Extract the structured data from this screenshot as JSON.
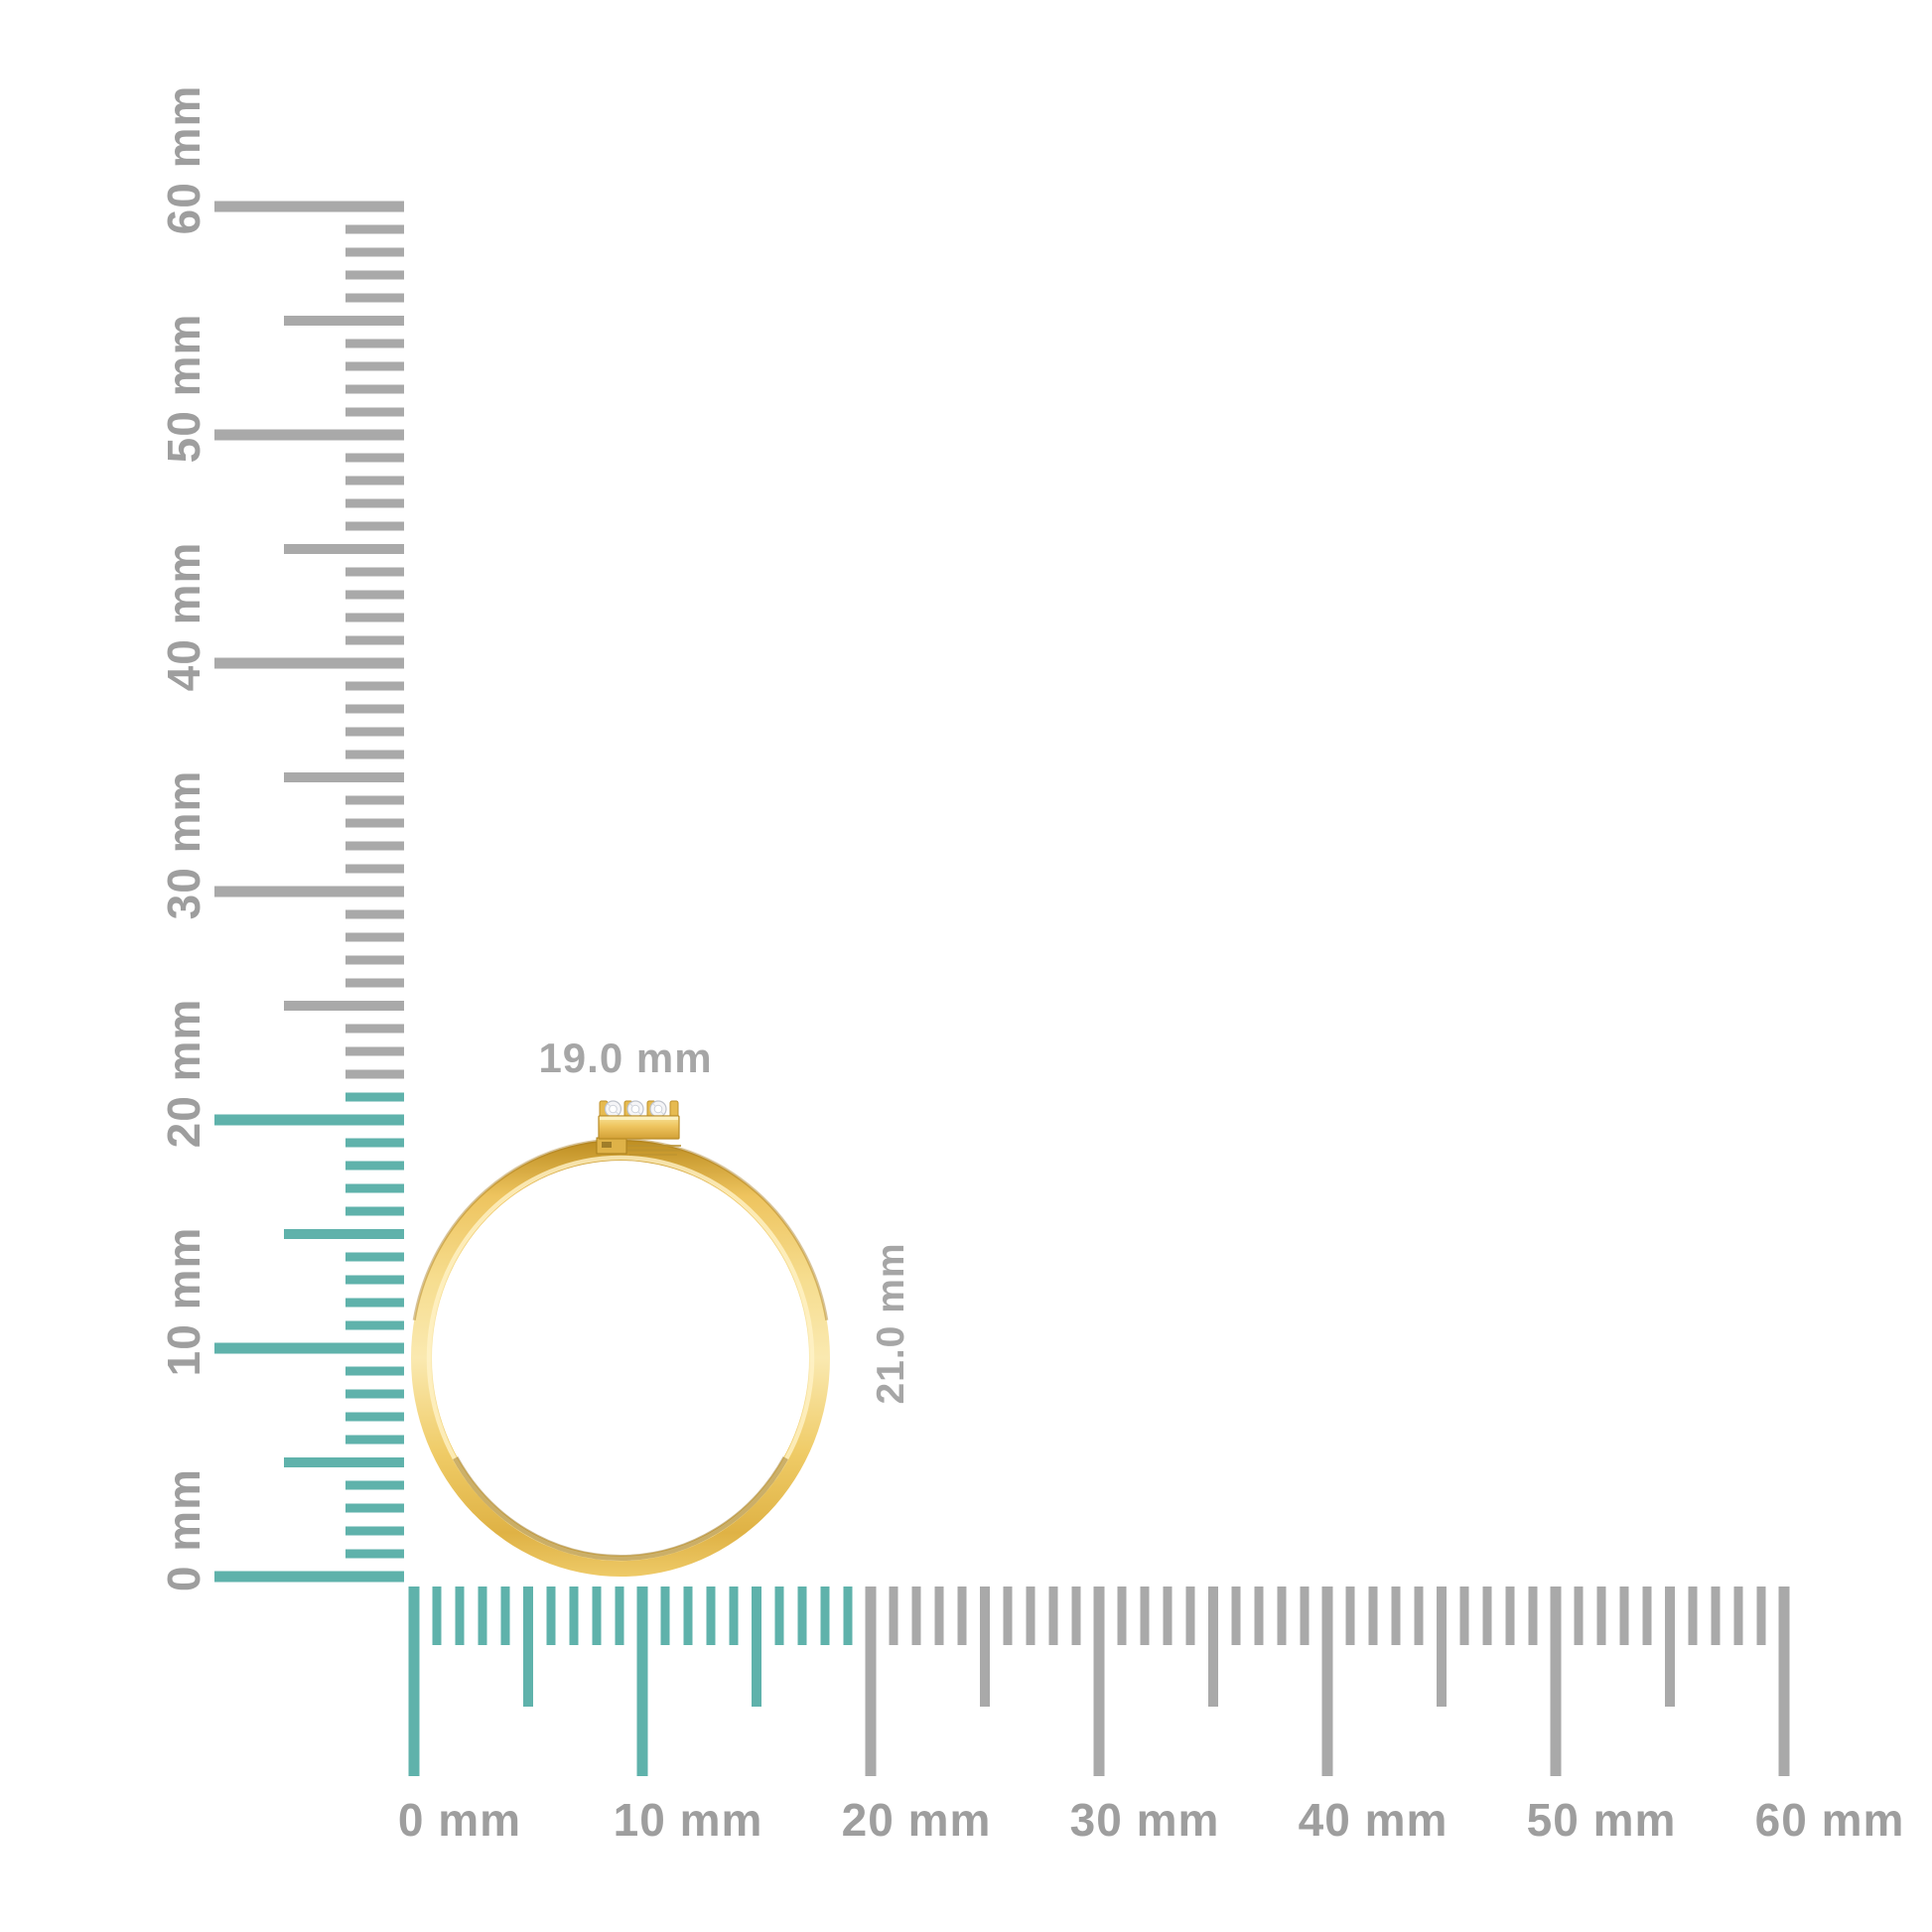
{
  "scene": {
    "description": "Gold ring with three-stone diamond bar setting shown to scale against millimeter rulers",
    "width_label": "19.0 mm",
    "height_label": "21.0 mm"
  },
  "colors": {
    "teal": "#5fb2ab",
    "tick_gray": "#a9a9a9",
    "label_gray": "#9e9e9e",
    "dimension_gray": "#a6a6a6",
    "gold_dark": "#bd8d20",
    "gold_mid": "#eec45f",
    "gold_light": "#fae9b0",
    "gold_edge": "#b98b25",
    "diamond_white": "#f5f5f7",
    "diamond_edge": "#bfc3cb"
  },
  "rulers": {
    "unit": "mm",
    "max_mm": 60,
    "major_every_mm": 10,
    "vertical": {
      "labels": [
        "0 mm",
        "10 mm",
        "20 mm",
        "30 mm",
        "40 mm",
        "50 mm",
        "60 mm"
      ],
      "teal_up_to_mm": 21
    },
    "horizontal": {
      "labels": [
        "0 mm",
        "10 mm",
        "20 mm",
        "30 mm",
        "40 mm",
        "50 mm",
        "60 mm"
      ],
      "teal_up_to_mm": 19
    }
  },
  "ring": {
    "material": "yellow gold",
    "stone_count": 3,
    "stone_type": "round diamonds"
  }
}
